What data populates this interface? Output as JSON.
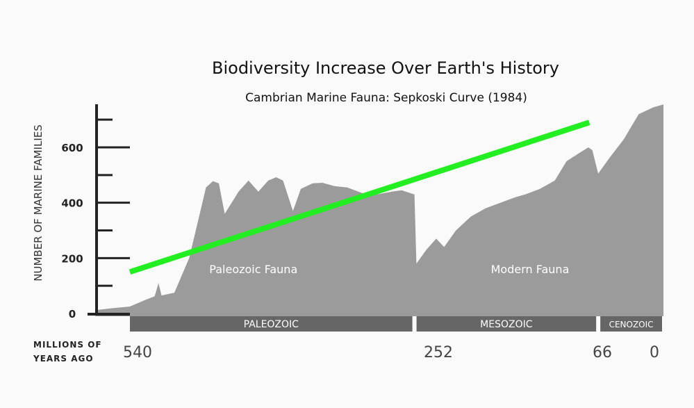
{
  "chart_data": {
    "type": "area",
    "title": "Biodiversity Increase Over Earth's History",
    "subtitle": "Cambrian Marine Fauna:  Sepkoski Curve (1984)",
    "ylabel": "NUMBER OF MARINE FAMILIES",
    "xlabel": "MILLIONS OF YEARS AGO",
    "x_reversed": true,
    "ylim": [
      0,
      750
    ],
    "yticks": [
      {
        "value": 0,
        "label": "0"
      },
      {
        "value": 200,
        "label": "200"
      },
      {
        "value": 400,
        "label": "400"
      },
      {
        "value": 600,
        "label": "600"
      }
    ],
    "yticks_minor": [
      100,
      300,
      500,
      700
    ],
    "xticks": [
      {
        "value": 540,
        "label": "540"
      },
      {
        "value": 252,
        "label": "252"
      },
      {
        "value": 66,
        "label": "66"
      },
      {
        "value": 0,
        "label": "0"
      }
    ],
    "series": [
      {
        "name": "",
        "color": "#9b9b9b",
        "points": [
          [
            575,
            12
          ],
          [
            560,
            18
          ],
          [
            540,
            25
          ],
          [
            525,
            48
          ],
          [
            515,
            62
          ],
          [
            511,
            110
          ],
          [
            508,
            65
          ],
          [
            495,
            75
          ],
          [
            480,
            200
          ],
          [
            470,
            350
          ],
          [
            463,
            455
          ],
          [
            456,
            478
          ],
          [
            450,
            470
          ],
          [
            444,
            360
          ],
          [
            430,
            440
          ],
          [
            420,
            480
          ],
          [
            410,
            440
          ],
          [
            400,
            480
          ],
          [
            392,
            492
          ],
          [
            385,
            480
          ],
          [
            375,
            370
          ],
          [
            367,
            450
          ],
          [
            355,
            470
          ],
          [
            345,
            472
          ],
          [
            333,
            460
          ],
          [
            320,
            455
          ],
          [
            305,
            435
          ],
          [
            290,
            430
          ],
          [
            275,
            440
          ],
          [
            265,
            445
          ],
          [
            252,
            430
          ],
          [
            250,
            180
          ],
          [
            240,
            230
          ],
          [
            230,
            270
          ],
          [
            222,
            240
          ],
          [
            210,
            300
          ],
          [
            195,
            350
          ],
          [
            180,
            380
          ],
          [
            165,
            400
          ],
          [
            150,
            420
          ],
          [
            140,
            430
          ],
          [
            125,
            450
          ],
          [
            110,
            480
          ],
          [
            98,
            550
          ],
          [
            85,
            580
          ],
          [
            76,
            600
          ],
          [
            72,
            590
          ],
          [
            66,
            505
          ],
          [
            55,
            560
          ],
          [
            40,
            630
          ],
          [
            25,
            720
          ],
          [
            10,
            745
          ],
          [
            0,
            755
          ]
        ]
      }
    ],
    "trendline": {
      "color": "#22ee22",
      "from": [
        540,
        150
      ],
      "to": [
        75,
        690
      ]
    },
    "area_labels": [
      {
        "text": "Paleozoic Fauna",
        "x": 415,
        "y": 145
      },
      {
        "text": "Modern Fauna",
        "x": 135,
        "y": 145
      }
    ],
    "eras": [
      {
        "name": "PALEOZOIC",
        "from": 540,
        "to": 252
      },
      {
        "name": "MESOZOIC",
        "from": 252,
        "to": 66
      },
      {
        "name": "CENOZOIC",
        "from": 66,
        "to": 0
      }
    ],
    "colors": {
      "area": "#9b9b9b",
      "era_bar": "#666666",
      "axis": "#222222",
      "trend": "#22ee22"
    }
  }
}
